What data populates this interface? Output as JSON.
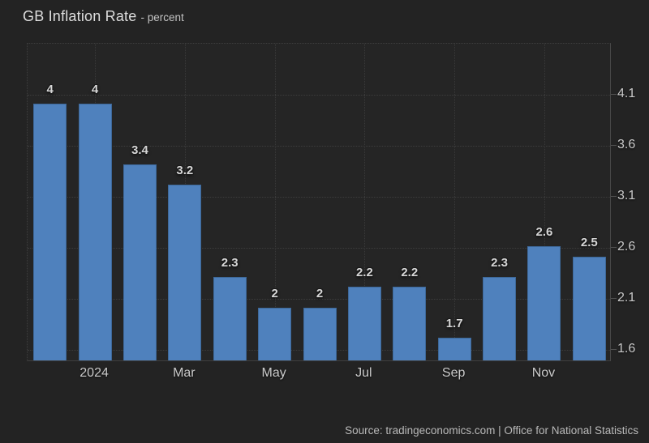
{
  "header": {
    "title": "GB Inflation Rate",
    "subtitle": "- percent"
  },
  "footer": {
    "source": "Source: tradingeconomics.com | Office for National Statistics"
  },
  "chart_data": {
    "type": "bar",
    "title": "GB Inflation Rate",
    "subtitle": "percent",
    "values": [
      4,
      4,
      3.4,
      3.2,
      2.3,
      2,
      2,
      2.2,
      2.2,
      1.7,
      2.3,
      2.6,
      2.5
    ],
    "bar_value_labels": [
      "4",
      "4",
      "3.4",
      "3.2",
      "2.3",
      "2",
      "2",
      "2.2",
      "2.2",
      "1.7",
      "2.3",
      "2.6",
      "2.5"
    ],
    "x_tick_labels": [
      "2024",
      "Mar",
      "May",
      "Jul",
      "Sep",
      "Nov"
    ],
    "x_tick_bar_indexes": [
      1,
      3,
      5,
      7,
      9,
      11
    ],
    "y_tick_labels": [
      "4.1",
      "3.6",
      "3.1",
      "2.6",
      "2.1",
      "1.6"
    ],
    "y_tick_values": [
      4.1,
      3.6,
      3.1,
      2.6,
      2.1,
      1.6
    ],
    "y_axis_side": "right",
    "ylim": [
      1.48,
      4.6
    ],
    "grid": "dotted",
    "legend": "none",
    "bar_color": "#4f81bd",
    "background_color": "#232323"
  }
}
